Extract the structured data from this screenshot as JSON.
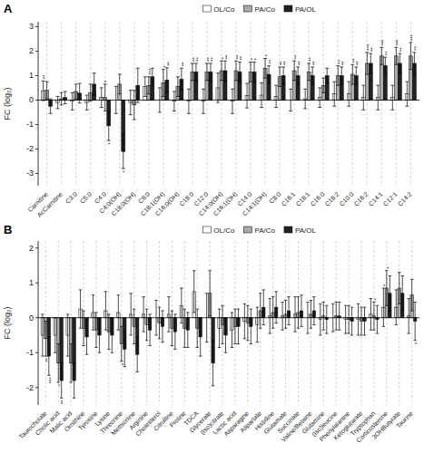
{
  "chart_data": [
    {
      "type": "bar",
      "title": "A",
      "y_label": "FC (log₂)",
      "categories": [
        "Carnitine",
        "AcCarnitine",
        "C3:0",
        "C5:0",
        "C4:0",
        "C4:0(OH)",
        "C18:0(OH)",
        "C6:0",
        "C18:1(OH)",
        "C16:0(OH)",
        "C18:0",
        "C12:0",
        "C14:0(OH)",
        "C16:1(OH)",
        "C14:0",
        "C14:1(OH)",
        "C8:0",
        "C16:1",
        "C18:1",
        "C16:0",
        "C18:2",
        "C10:0",
        "C16:2",
        "C14:1",
        "C12:1",
        "C14:2"
      ],
      "series": [
        {
          "name": "OL/Co",
          "color": "#ffffff",
          "values": [
            0.38,
            -0.1,
            -0.05,
            -0.1,
            0.1,
            0.0,
            -0.1,
            0.55,
            0.0,
            -0.05,
            -0.05,
            -0.05,
            0.5,
            -0.05,
            0.18,
            0.2,
            0.15,
            0.0,
            0.05,
            0.1,
            0.25,
            0.25,
            0.1,
            0.1,
            0.1,
            0.25
          ],
          "errors": [
            0.4,
            0.25,
            0.35,
            0.3,
            0.4,
            0.55,
            0.5,
            0.4,
            0.5,
            0.4,
            0.5,
            0.5,
            0.6,
            0.5,
            0.5,
            0.5,
            0.45,
            0.45,
            0.4,
            0.4,
            0.5,
            0.5,
            0.5,
            0.5,
            0.5,
            0.5
          ],
          "annotations": [
            "**",
            null,
            null,
            null,
            null,
            null,
            null,
            null,
            null,
            null,
            null,
            null,
            null,
            null,
            null,
            null,
            null,
            null,
            null,
            null,
            null,
            null,
            null,
            null,
            null,
            null
          ]
        },
        {
          "name": "PA/Co",
          "color": "#aaaaaa",
          "values": [
            0.4,
            0.05,
            0.35,
            0.3,
            0.1,
            0.65,
            -0.2,
            0.6,
            0.7,
            0.55,
            1.15,
            1.15,
            1.2,
            1.2,
            1.15,
            1.3,
            0.95,
            1.2,
            1.15,
            0.6,
            1.0,
            1.05,
            1.5,
            1.8,
            1.8,
            1.8
          ],
          "errors": [
            0.35,
            0.25,
            0.3,
            0.35,
            0.55,
            0.4,
            0.6,
            0.35,
            0.55,
            0.4,
            0.35,
            0.35,
            0.4,
            0.4,
            0.4,
            0.4,
            0.4,
            0.4,
            0.35,
            0.3,
            0.4,
            0.4,
            0.45,
            0.35,
            0.35,
            0.55
          ],
          "annotations": [
            null,
            null,
            null,
            null,
            "*",
            null,
            null,
            "***",
            "*",
            null,
            "**",
            "**",
            "*",
            "**",
            "*",
            "*",
            "**",
            "**",
            "**",
            null,
            "**",
            "**",
            "***",
            "***",
            "***",
            "***"
          ]
        },
        {
          "name": "PA/OL",
          "color": "#222222",
          "values": [
            -0.25,
            0.1,
            0.28,
            0.65,
            -1.05,
            -2.1,
            0.6,
            0.95,
            0.82,
            0.85,
            1.15,
            1.15,
            1.2,
            1.15,
            1.15,
            1.05,
            1.0,
            1.0,
            1.0,
            1.0,
            1.0,
            1.0,
            1.5,
            1.4,
            1.5,
            1.5
          ],
          "errors": [
            0.3,
            0.25,
            0.4,
            0.45,
            0.6,
            0.7,
            0.7,
            0.35,
            0.5,
            0.45,
            0.35,
            0.35,
            0.4,
            0.4,
            0.4,
            0.35,
            0.35,
            0.35,
            0.35,
            0.3,
            0.35,
            0.35,
            0.4,
            0.35,
            0.4,
            0.45
          ],
          "annotations": [
            null,
            null,
            null,
            null,
            "*",
            "*",
            null,
            null,
            "**",
            "**",
            "**",
            "**",
            "**",
            "**",
            "*",
            "**",
            "**",
            "**",
            "**",
            null,
            "**",
            "**",
            "**",
            "**",
            "**",
            "**"
          ]
        }
      ],
      "ylim": [
        -3.5,
        3.2
      ],
      "yticks": [
        -3,
        -2,
        -1,
        0,
        1,
        2,
        3
      ],
      "grid": "x",
      "legend": "top"
    },
    {
      "type": "bar",
      "title": "B",
      "y_label": "FC (log₂)",
      "categories": [
        "Taurocholate",
        "Cholic acid",
        "Malic acid",
        "Ornithine",
        "Tyrosine",
        "Lysine",
        "Threonine",
        "Methionine",
        "Arginine",
        "Cholesterol",
        "Citrulline",
        "Proline",
        "TDCA",
        "Glycerate",
        "(Iso)citrate",
        "Lactic acid",
        "Asparagine",
        "Aspartate",
        "Histidine",
        "Glutamate",
        "Succinate",
        "Valine/Betaine",
        "Glutamine",
        "(Iso)leucine",
        "Phenylalanine",
        "Ketoglutarate",
        "Tryptophan",
        "Corticosterone",
        "3OHButyrate",
        "Taurine"
      ],
      "series": [
        {
          "name": "OL/Co",
          "color": "#ffffff",
          "values": [
            -0.5,
            -0.5,
            -0.5,
            0.25,
            0.15,
            0.2,
            0.15,
            0.1,
            0.1,
            0.0,
            0.1,
            0.35,
            0.75,
            0.0,
            -0.3,
            -0.35,
            -0.1,
            -0.2,
            0.05,
            0.05,
            0.1,
            0.0,
            -0.05,
            0.0,
            -0.05,
            -0.05,
            0.1,
            0.3,
            0.3,
            0.05
          ],
          "errors": [
            0.6,
            0.5,
            0.6,
            0.55,
            0.5,
            0.55,
            0.5,
            0.6,
            0.5,
            0.5,
            0.5,
            0.5,
            0.6,
            0.7,
            0.55,
            0.5,
            0.5,
            0.5,
            0.5,
            0.4,
            0.5,
            0.45,
            0.45,
            0.4,
            0.4,
            0.45,
            0.45,
            0.55,
            0.5,
            0.5
          ],
          "annotations": [
            null,
            null,
            null,
            null,
            null,
            null,
            null,
            null,
            null,
            null,
            null,
            null,
            null,
            null,
            null,
            null,
            null,
            null,
            null,
            null,
            null,
            null,
            null,
            null,
            null,
            null,
            null,
            "*",
            null,
            null
          ]
        },
        {
          "name": "PA/Co",
          "color": "#aaaaaa",
          "values": [
            -0.6,
            -1.3,
            -1.3,
            -0.3,
            -0.35,
            -0.4,
            -0.75,
            -0.25,
            -0.2,
            -0.15,
            -0.3,
            -0.3,
            -0.3,
            0.7,
            -0.2,
            -0.25,
            -0.15,
            0.2,
            0.15,
            0.1,
            0.15,
            0.1,
            0.05,
            0.05,
            -0.05,
            -0.1,
            0.05,
            0.85,
            0.85,
            0.65
          ],
          "errors": [
            0.5,
            0.55,
            0.55,
            0.5,
            0.5,
            0.5,
            0.5,
            0.5,
            0.45,
            0.45,
            0.5,
            0.55,
            0.55,
            0.65,
            0.55,
            0.5,
            0.5,
            0.5,
            0.45,
            0.4,
            0.45,
            0.4,
            0.4,
            0.4,
            0.4,
            0.4,
            0.4,
            0.5,
            0.45,
            0.45
          ],
          "annotations": [
            "**",
            "*",
            null,
            null,
            null,
            null,
            "*",
            null,
            null,
            null,
            null,
            null,
            null,
            null,
            null,
            null,
            null,
            null,
            null,
            null,
            null,
            null,
            null,
            null,
            null,
            null,
            "*",
            "*",
            null,
            null
          ]
        },
        {
          "name": "PA/OL",
          "color": "#222222",
          "values": [
            -1.1,
            -1.8,
            -1.8,
            -0.55,
            -0.5,
            -0.5,
            -0.9,
            -1.05,
            -0.35,
            -0.25,
            -0.4,
            -0.35,
            -0.55,
            -1.3,
            -0.5,
            -0.25,
            -0.25,
            0.3,
            0.3,
            0.2,
            0.2,
            0.2,
            -0.05,
            0.05,
            -0.1,
            -0.1,
            -0.05,
            0.7,
            0.7,
            -0.1
          ],
          "errors": [
            0.55,
            0.5,
            0.5,
            0.5,
            0.5,
            0.5,
            0.5,
            0.5,
            0.45,
            0.45,
            0.5,
            0.5,
            0.55,
            0.65,
            0.5,
            0.5,
            0.5,
            0.5,
            0.45,
            0.4,
            0.45,
            0.4,
            0.4,
            0.4,
            0.4,
            0.4,
            0.4,
            0.5,
            0.5,
            0.55
          ],
          "annotations": [
            "***",
            "**",
            null,
            null,
            null,
            null,
            null,
            null,
            null,
            null,
            null,
            null,
            null,
            null,
            null,
            null,
            null,
            null,
            null,
            null,
            null,
            null,
            null,
            null,
            null,
            null,
            null,
            null,
            null,
            "*"
          ]
        }
      ],
      "ylim": [
        -2.5,
        2.2
      ],
      "yticks": [
        -2,
        -1,
        0,
        1,
        2
      ],
      "grid": "x",
      "legend": "top"
    }
  ]
}
